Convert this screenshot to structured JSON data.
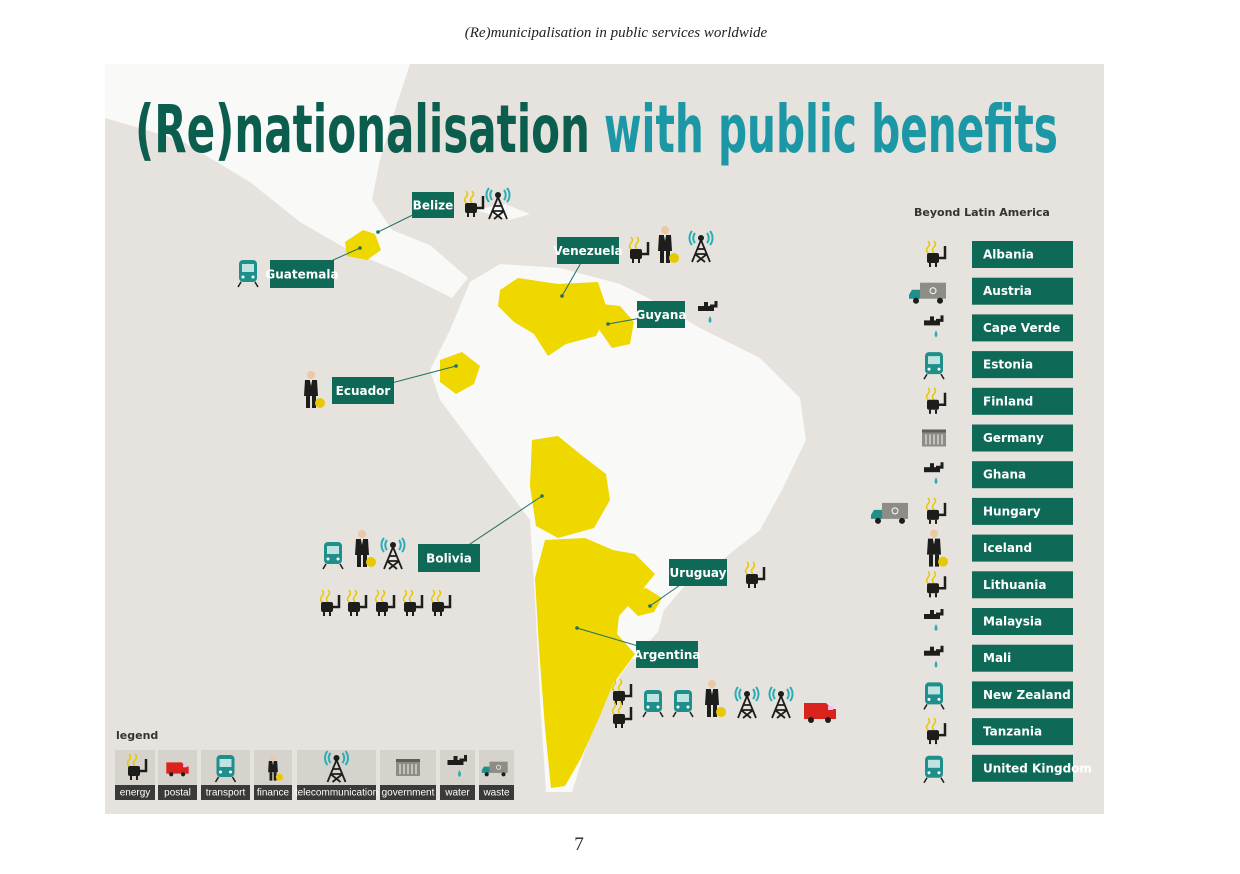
{
  "header": {
    "title": "(Re)municipalisation in public services worldwide"
  },
  "infographic": {
    "title_part1": "(Re)nationalisation",
    "title_part2": "with public benefits",
    "map_labels": [
      "Belize",
      "Guatemala",
      "Venezuela",
      "Guyana",
      "Ecuador",
      "Bolivia",
      "Uruguay",
      "Argentina"
    ],
    "beyond": {
      "heading": "Beyond Latin America",
      "countries": [
        "Albania",
        "Austria",
        "Cape Verde",
        "Estonia",
        "Finland",
        "Germany",
        "Ghana",
        "Hungary",
        "Iceland",
        "Lithuania",
        "Malaysia",
        "Mali",
        "New Zealand",
        "Tanzania",
        "United Kingdom"
      ]
    },
    "legend": {
      "title": "legend",
      "items": [
        "energy",
        "postal",
        "transport",
        "finance",
        "telecommunication",
        "government",
        "water",
        "waste"
      ]
    }
  },
  "footer": {
    "page_number": "7"
  }
}
